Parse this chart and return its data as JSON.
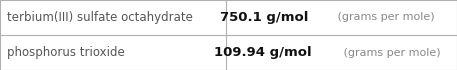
{
  "rows": [
    {
      "name": "terbium(III) sulfate octahydrate",
      "value_bold": "750.1 g/mol",
      "value_light": " (grams per mole)"
    },
    {
      "name": "phosphorus trioxide",
      "value_bold": "109.94 g/mol",
      "value_light": " (grams per mole)"
    }
  ],
  "col_split": 0.495,
  "background_color": "#ffffff",
  "border_color": "#b0b0b0",
  "text_color_name": "#555555",
  "text_color_value_bold": "#111111",
  "text_color_value_light": "#888888",
  "font_size_name": 8.5,
  "font_size_value_bold": 9.5,
  "font_size_value_light": 8.0,
  "fig_width": 4.57,
  "fig_height": 0.7,
  "dpi": 100
}
